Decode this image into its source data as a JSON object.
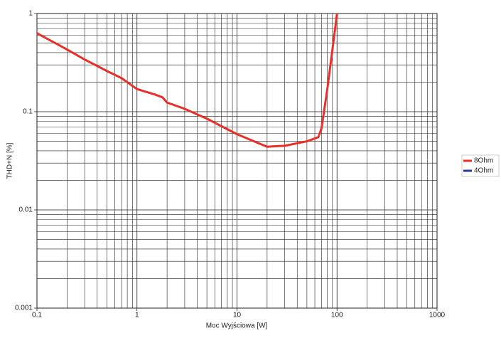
{
  "chart_data": {
    "type": "line",
    "x_label": "Moc Wyjściowa [W]",
    "y_label": "THD+N [%]",
    "x": [
      0.1,
      0.2,
      0.3,
      0.5,
      0.7,
      1,
      1.5,
      1.8,
      2,
      3,
      5,
      10,
      20,
      30,
      50,
      65,
      70,
      80,
      90,
      100
    ],
    "series": [
      {
        "name": "8Ohm",
        "color": "#e8302a",
        "values": [
          0.63,
          0.43,
          0.34,
          0.26,
          0.22,
          0.17,
          0.15,
          0.14,
          0.124,
          0.107,
          0.085,
          0.059,
          0.044,
          0.045,
          0.05,
          0.055,
          0.068,
          0.17,
          0.43,
          1.0
        ]
      },
      {
        "name": "4Ohm",
        "color": "#2b3a9a",
        "values": [
          null,
          null,
          null,
          null,
          null,
          null,
          null,
          null,
          null,
          null,
          null,
          null,
          null,
          null,
          null,
          null,
          null,
          null,
          null,
          null
        ]
      }
    ],
    "xlim": [
      0.1,
      1000
    ],
    "ylim": [
      0.001,
      1
    ],
    "xticks": [
      0.1,
      1,
      10,
      100,
      1000
    ],
    "yticks": [
      0.001,
      0.01,
      0.1,
      1
    ],
    "xlog": true,
    "ylog": true,
    "grid": true,
    "legend": "right"
  }
}
